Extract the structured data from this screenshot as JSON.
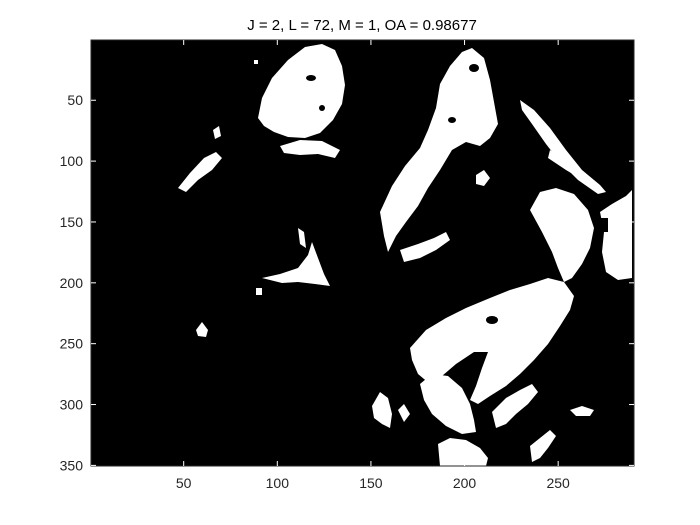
{
  "chart_data": {
    "type": "heatmap",
    "title": "J = 2, L = 72, M = 1, OA = 0.98677",
    "xlabel": "",
    "ylabel": "",
    "xlim": [
      0.5,
      290.5
    ],
    "ylim": [
      0.5,
      350.5
    ],
    "x_ticks": [
      50,
      100,
      150,
      200,
      250
    ],
    "y_ticks": [
      50,
      100,
      150,
      200,
      250,
      300,
      350
    ],
    "y_direction": "reverse",
    "colormap": [
      "#000000",
      "#ffffff"
    ],
    "grid": false,
    "legend": "none"
  }
}
